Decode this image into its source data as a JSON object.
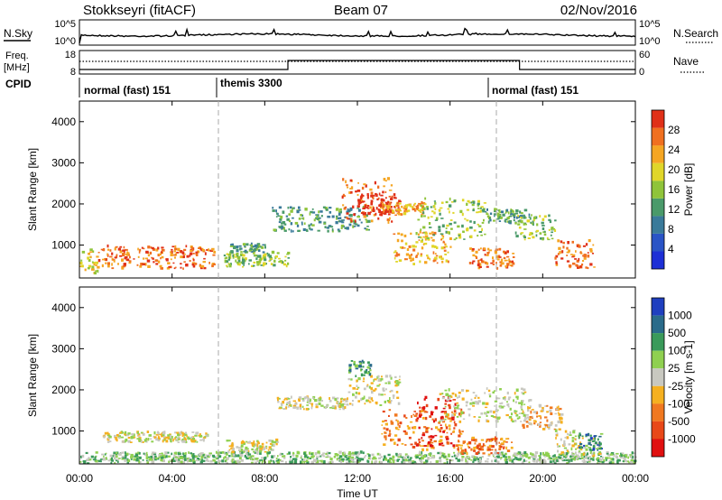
{
  "header": {
    "station": "Stokkseyri (fitACF)",
    "beam": "Beam 07",
    "date": "02/Nov/2016"
  },
  "noise_panel": {
    "left_label": "N.Sky",
    "right_label": "N.Search",
    "left_ticks": [
      "10^5",
      "10^0"
    ],
    "right_ticks": [
      "10^5",
      "10^0"
    ]
  },
  "freq_panel": {
    "left_label_line1": "Freq.",
    "left_label_line2": "[MHz]",
    "right_label": "Nave",
    "left_ticks": [
      "18",
      "8"
    ],
    "right_ticks": [
      "60",
      "0"
    ]
  },
  "cpid": {
    "label": "CPID",
    "segments": [
      "normal (fast) 151",
      "themis 3300",
      "normal (fast) 151"
    ]
  },
  "x_axis": {
    "label": "Time UT",
    "ticks": [
      "00:00",
      "04:00",
      "08:00",
      "12:00",
      "16:00",
      "20:00",
      "00:00"
    ]
  },
  "chart_data": [
    {
      "type": "heatmap",
      "title": "Power",
      "ylabel": "Slant Range [km]",
      "yticks": [
        "1000",
        "2000",
        "3000",
        "4000"
      ],
      "ylim": [
        200,
        4500
      ],
      "xlim_hours": [
        0,
        24
      ],
      "colorbar": {
        "label": "Power [dB]",
        "ticks": [
          "4",
          "8",
          "12",
          "16",
          "20",
          "24",
          "28"
        ],
        "colors": [
          "#1d2fd6",
          "#2a54c6",
          "#3a7a9a",
          "#4a9a6a",
          "#8fc43a",
          "#e0d62a",
          "#f5a623",
          "#f07020",
          "#e03018"
        ]
      },
      "regions": [
        {
          "t0": 0.0,
          "t1": 0.8,
          "r0": 280,
          "r1": 900,
          "level": 5
        },
        {
          "t0": 0.8,
          "t1": 5.8,
          "r0": 400,
          "r1": 950,
          "level": 7
        },
        {
          "t0": 6.2,
          "t1": 9.0,
          "r0": 450,
          "r1": 800,
          "level": 4
        },
        {
          "t0": 6.5,
          "t1": 8.0,
          "r0": 800,
          "r1": 1000,
          "level": 3
        },
        {
          "t0": 8.3,
          "t1": 12.5,
          "r0": 1300,
          "r1": 1900,
          "level": 3
        },
        {
          "t0": 11.3,
          "t1": 13.5,
          "r0": 1500,
          "r1": 2600,
          "level": 7
        },
        {
          "t0": 12.0,
          "t1": 13.8,
          "r0": 1700,
          "r1": 2200,
          "level": 9
        },
        {
          "t0": 13.0,
          "t1": 14.8,
          "r0": 1700,
          "r1": 2000,
          "level": 6
        },
        {
          "t0": 13.5,
          "t1": 16.0,
          "r0": 500,
          "r1": 1300,
          "level": 6
        },
        {
          "t0": 14.5,
          "t1": 17.5,
          "r0": 1100,
          "r1": 2100,
          "level": 4
        },
        {
          "t0": 16.8,
          "t1": 18.7,
          "r0": 400,
          "r1": 900,
          "level": 7
        },
        {
          "t0": 17.5,
          "t1": 19.5,
          "r0": 1500,
          "r1": 1850,
          "level": 3
        },
        {
          "t0": 18.8,
          "t1": 20.5,
          "r0": 1100,
          "r1": 1700,
          "level": 4
        },
        {
          "t0": 20.5,
          "t1": 22.2,
          "r0": 400,
          "r1": 1100,
          "level": 7
        }
      ]
    },
    {
      "type": "heatmap",
      "title": "Velocity",
      "ylabel": "Slant Range [km]",
      "yticks": [
        "1000",
        "2000",
        "3000",
        "4000"
      ],
      "ylim": [
        200,
        4500
      ],
      "xlim_hours": [
        0,
        24
      ],
      "colorbar": {
        "label": "Velocity [m s-1]",
        "ticks": [
          "1000",
          "500",
          "100",
          "25",
          "-25",
          "-100",
          "-500",
          "-1000"
        ],
        "colors": [
          "#1f3fbf",
          "#2a6b8a",
          "#3a9a5a",
          "#8fd050",
          "#c8c8c0",
          "#f5b020",
          "#f07820",
          "#e84818",
          "#e01010"
        ]
      },
      "regions": [
        {
          "t0": 0.0,
          "t1": 24.0,
          "r0": 200,
          "r1": 450,
          "level": 3
        },
        {
          "t0": 1.0,
          "t1": 5.5,
          "r0": 700,
          "r1": 950,
          "level": 4
        },
        {
          "t0": 6.3,
          "t1": 8.5,
          "r0": 450,
          "r1": 750,
          "level": 4
        },
        {
          "t0": 8.5,
          "t1": 11.5,
          "r0": 1500,
          "r1": 1800,
          "level": 4
        },
        {
          "t0": 11.5,
          "t1": 13.8,
          "r0": 1600,
          "r1": 2300,
          "level": 4
        },
        {
          "t0": 11.6,
          "t1": 12.6,
          "r0": 2300,
          "r1": 2700,
          "level": 2
        },
        {
          "t0": 13.0,
          "t1": 16.5,
          "r0": 500,
          "r1": 1500,
          "level": 6
        },
        {
          "t0": 14.5,
          "t1": 16.2,
          "r0": 600,
          "r1": 1800,
          "level": 8
        },
        {
          "t0": 16.3,
          "t1": 18.7,
          "r0": 400,
          "r1": 800,
          "level": 6
        },
        {
          "t0": 15.5,
          "t1": 19.5,
          "r0": 1200,
          "r1": 2000,
          "level": 4
        },
        {
          "t0": 19.0,
          "t1": 20.8,
          "r0": 1000,
          "r1": 1600,
          "level": 5
        },
        {
          "t0": 20.5,
          "t1": 22.5,
          "r0": 300,
          "r1": 1000,
          "level": 4
        },
        {
          "t0": 21.5,
          "t1": 22.5,
          "r0": 500,
          "r1": 900,
          "level": 1
        }
      ]
    }
  ]
}
